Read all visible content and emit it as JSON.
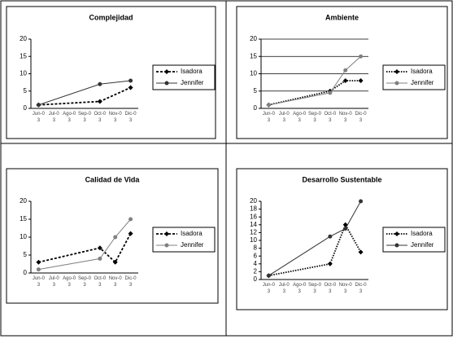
{
  "chart_data": [
    {
      "type": "line",
      "title": "Complejidad",
      "categories": [
        "Jun-03",
        "Jul-03",
        "Ago-03",
        "Sep-03",
        "Oct-03",
        "Nov-03",
        "Dic-03"
      ],
      "ylim": [
        0,
        20
      ],
      "yticks": [
        0,
        5,
        10,
        15,
        20
      ],
      "grid": false,
      "legend": "right",
      "series": [
        {
          "name": "Isadora",
          "color": "#000000",
          "dash": "dashed",
          "marker": "diamond",
          "x": [
            "Jun-03",
            "Oct-03",
            "Dic-03"
          ],
          "values": [
            1,
            2,
            6
          ]
        },
        {
          "name": "Jennifer",
          "color": "#333333",
          "dash": "solid",
          "marker": "circle",
          "x": [
            "Jun-03",
            "Oct-03",
            "Dic-03"
          ],
          "values": [
            1,
            7,
            8
          ]
        }
      ]
    },
    {
      "type": "line",
      "title": "Ambiente",
      "categories": [
        "Jun-03",
        "Jul-03",
        "Ago-03",
        "Sep-03",
        "Oct-03",
        "Nov-03",
        "Dic-03"
      ],
      "ylim": [
        0,
        20
      ],
      "yticks": [
        0,
        5,
        10,
        15,
        20
      ],
      "grid": true,
      "legend": "right",
      "series": [
        {
          "name": "Isadora",
          "color": "#000000",
          "dash": "dotted",
          "marker": "diamond",
          "x": [
            "Jun-03",
            "Oct-03",
            "Nov-03",
            "Dic-03"
          ],
          "values": [
            1,
            5,
            8,
            8
          ]
        },
        {
          "name": "Jennifer",
          "color": "#808080",
          "dash": "solid",
          "marker": "circle",
          "x": [
            "Jun-03",
            "Oct-03",
            "Nov-03",
            "Dic-03"
          ],
          "values": [
            1,
            4.5,
            11,
            15
          ]
        }
      ]
    },
    {
      "type": "line",
      "title": "Calidad de Vida",
      "categories": [
        "Jun-03",
        "Jul-03",
        "Ago-03",
        "Sep-03",
        "Oct-03",
        "Nov-03",
        "Dic-03"
      ],
      "ylim": [
        0,
        20
      ],
      "yticks": [
        0,
        5,
        10,
        15,
        20
      ],
      "grid": false,
      "legend": "right",
      "series": [
        {
          "name": "Isadora",
          "color": "#000000",
          "dash": "dashed",
          "marker": "diamond",
          "x": [
            "Jun-03",
            "Oct-03",
            "Nov-03",
            "Dic-03"
          ],
          "values": [
            3,
            7,
            3,
            11
          ]
        },
        {
          "name": "Jennifer",
          "color": "#808080",
          "dash": "solid",
          "marker": "circle",
          "x": [
            "Jun-03",
            "Oct-03",
            "Nov-03",
            "Dic-03"
          ],
          "values": [
            1,
            4,
            10,
            15
          ]
        }
      ]
    },
    {
      "type": "line",
      "title": "Desarrollo Sustentable",
      "categories": [
        "Jun-03",
        "Jul-03",
        "Ago-03",
        "Sep-03",
        "Oct-03",
        "Nov-03",
        "Dic-03"
      ],
      "ylim": [
        0,
        20
      ],
      "yticks": [
        0,
        2,
        4,
        6,
        8,
        10,
        12,
        14,
        16,
        18,
        20
      ],
      "grid": false,
      "legend": "right",
      "series": [
        {
          "name": "Isadora",
          "color": "#000000",
          "dash": "dotted",
          "marker": "diamond",
          "x": [
            "Jun-03",
            "Oct-03",
            "Nov-03",
            "Dic-03"
          ],
          "values": [
            1,
            4,
            14,
            7
          ]
        },
        {
          "name": "Jennifer",
          "color": "#333333",
          "dash": "solid",
          "marker": "circle",
          "x": [
            "Jun-03",
            "Oct-03",
            "Nov-03",
            "Dic-03"
          ],
          "values": [
            1,
            11,
            13,
            20
          ]
        }
      ]
    }
  ]
}
